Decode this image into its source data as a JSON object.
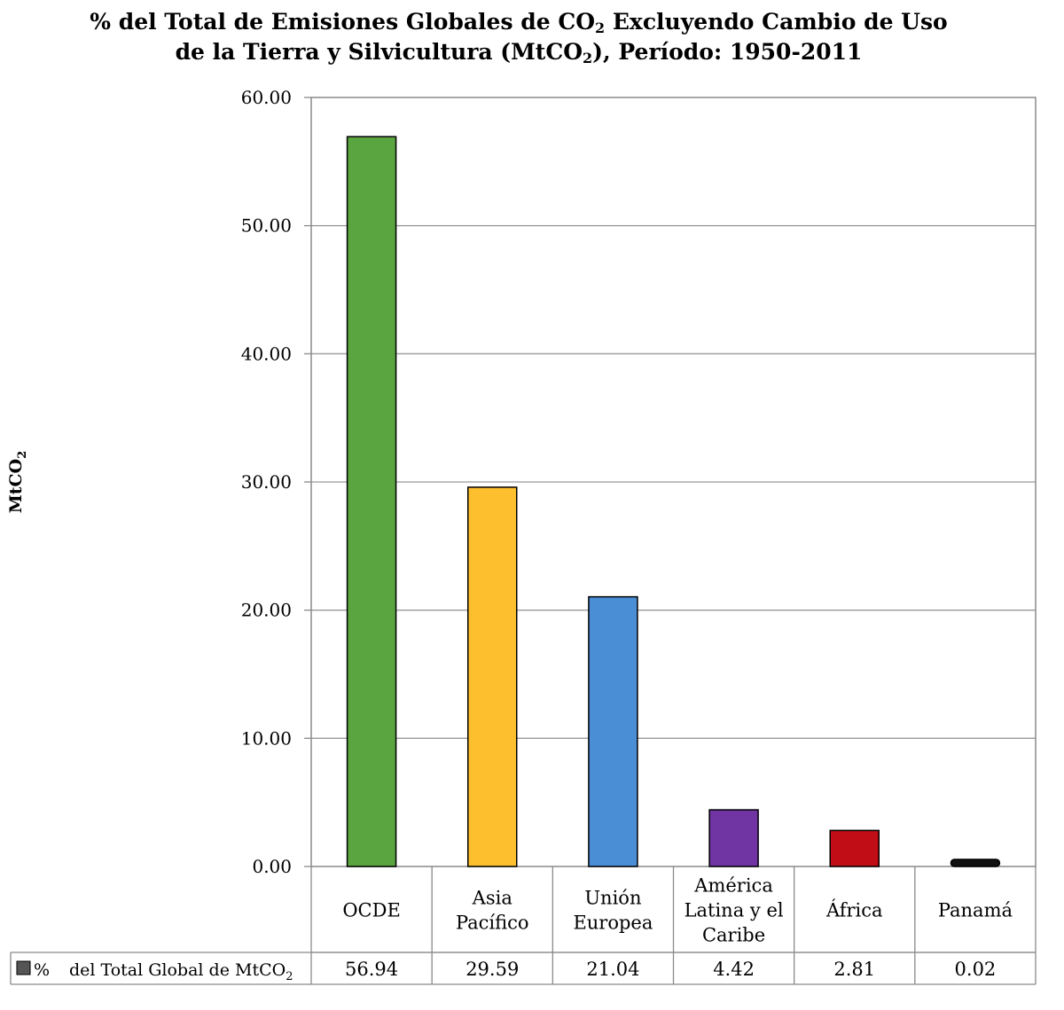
{
  "chart_data": {
    "type": "bar",
    "title_line1_pre": "% del Total de Emisiones Globales de CO",
    "title_line1_sub": "2",
    "title_line1_post": " Excluyendo Cambio de Uso",
    "title_line2_pre": "de la Tierra y Silvicultura (MtCO",
    "title_line2_sub": "2",
    "title_line2_post": "), Período: 1950-2011",
    "ylabel": "MtCO",
    "ylabel_sub": "2",
    "xlabel": "",
    "ylim": [
      0,
      60
    ],
    "yticks": [
      "0.00",
      "10.00",
      "20.00",
      "30.00",
      "40.00",
      "50.00",
      "60.00"
    ],
    "grid": true,
    "categories": [
      [
        "OCDE"
      ],
      [
        "Asia",
        "Pacífico"
      ],
      [
        "Unión",
        "Europea"
      ],
      [
        "América",
        "Latina y el",
        "Caribe"
      ],
      [
        "África"
      ],
      [
        "Panamá"
      ]
    ],
    "values": [
      56.94,
      29.59,
      21.04,
      4.42,
      2.81,
      0.02
    ],
    "value_labels": [
      "56.94",
      "29.59",
      "21.04",
      "4.42",
      "2.81",
      "0.02"
    ],
    "bar_colors": [
      "#5aa540",
      "#fdbf2d",
      "#4a8fd6",
      "#7135a3",
      "#c00d16",
      "#111111"
    ],
    "legend_symbol": "%",
    "legend_text": "del Total Global de MtCO",
    "legend_sub": "2",
    "legend_color": "#555555"
  }
}
